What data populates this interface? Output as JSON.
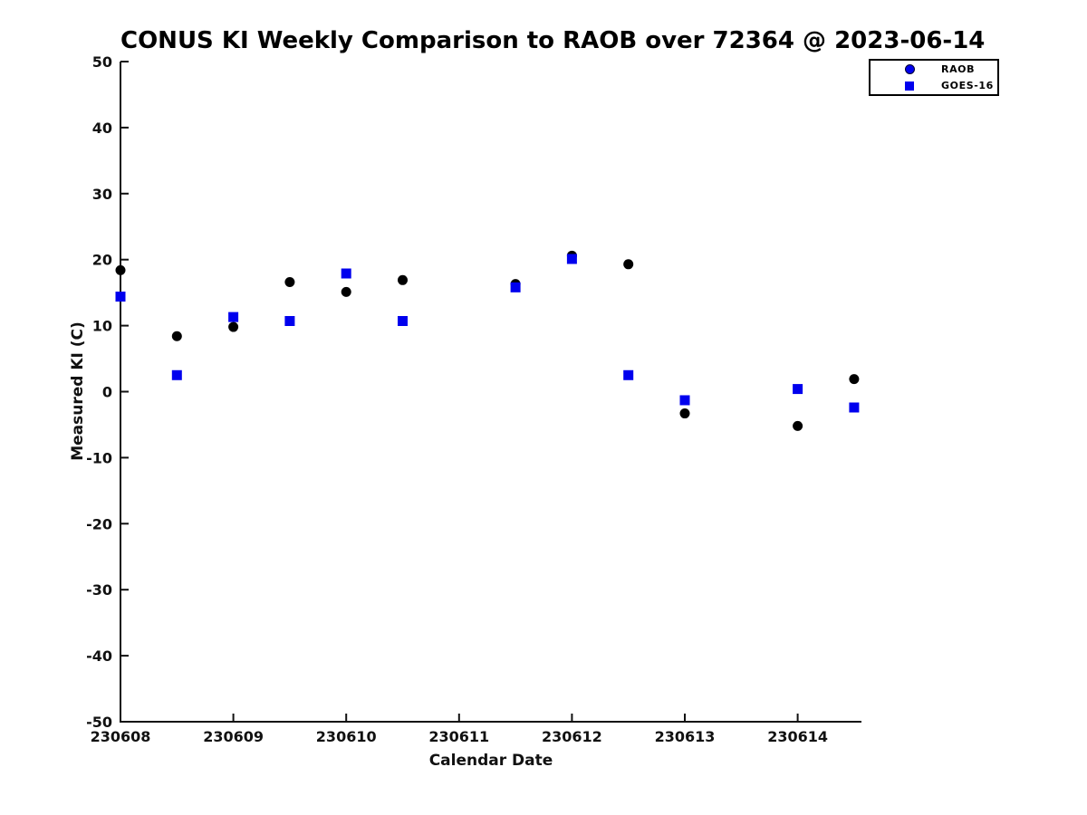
{
  "title": "CONUS KI Weekly Comparison to RAOB over 72364 @ 2023-06-14",
  "colors": {
    "raob_plot_marker": "#000000",
    "goes_marker": "#0000ee",
    "legend_marker": "#0000ee",
    "axis": "#111111",
    "background": "#ffffff"
  },
  "chart_data": {
    "type": "scatter",
    "title": "CONUS KI Weekly Comparison to RAOB over 72364 @ 2023-06-14",
    "xlabel": "Calendar Date",
    "ylabel": "Measured KI (C)",
    "x_tick_labels": [
      "230608",
      "230609",
      "230610",
      "230611",
      "230612",
      "230613",
      "230614"
    ],
    "x_tick_positions": [
      0,
      1,
      2,
      3,
      4,
      5,
      6
    ],
    "xlim": [
      0,
      6.565
    ],
    "y_ticks": [
      50,
      40,
      30,
      20,
      10,
      0,
      -10,
      -20,
      -30,
      -40,
      -50
    ],
    "ylim": [
      -50,
      50
    ],
    "grid": false,
    "legend_position": "top-right-outside",
    "series": [
      {
        "name": "RAOB",
        "marker": "circle",
        "color": "#000000",
        "x": [
          0,
          0.5,
          1,
          1.5,
          2,
          2.5,
          3.5,
          4,
          4.5,
          5,
          6,
          6.5
        ],
        "y": [
          18.4,
          8.4,
          9.8,
          16.6,
          15.1,
          16.9,
          16.3,
          20.6,
          19.3,
          -3.3,
          -5.2,
          1.9
        ]
      },
      {
        "name": "GOES-16",
        "marker": "square",
        "color": "#0000ee",
        "x": [
          0,
          0.5,
          1,
          1.5,
          2,
          2.5,
          3.5,
          4,
          4.5,
          5,
          6,
          6.5
        ],
        "y": [
          14.4,
          2.5,
          11.3,
          10.7,
          17.9,
          10.7,
          15.8,
          20.1,
          2.5,
          -1.3,
          0.4,
          -2.4
        ]
      }
    ],
    "legend": {
      "entries": [
        {
          "label": "RAOB",
          "marker": "circle",
          "color": "#0000ee"
        },
        {
          "label": "GOES-16",
          "marker": "square",
          "color": "#0000ee"
        }
      ]
    }
  }
}
